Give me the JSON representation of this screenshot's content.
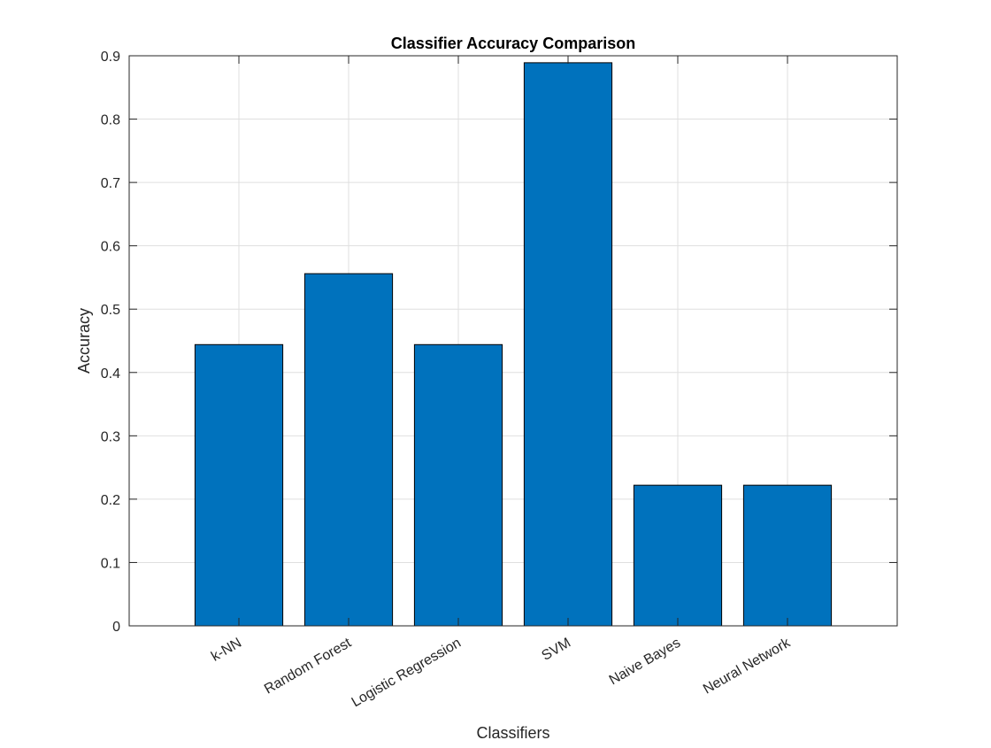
{
  "chart_data": {
    "type": "bar",
    "title": "Classifier Accuracy Comparison",
    "xlabel": "Classifiers",
    "ylabel": "Accuracy",
    "categories": [
      "k-NN",
      "Random Forest",
      "Logistic Regression",
      "SVM",
      "Naive Bayes",
      "Neural Network"
    ],
    "values": [
      0.444,
      0.556,
      0.444,
      0.889,
      0.222,
      0.222
    ],
    "ylim": [
      0,
      0.9
    ],
    "yticks": [
      "0",
      "0.1",
      "0.2",
      "0.3",
      "0.4",
      "0.5",
      "0.6",
      "0.7",
      "0.8",
      "0.9"
    ],
    "grid": true,
    "bar_color": "#0072BD",
    "bar_edge_color": "#000000"
  }
}
